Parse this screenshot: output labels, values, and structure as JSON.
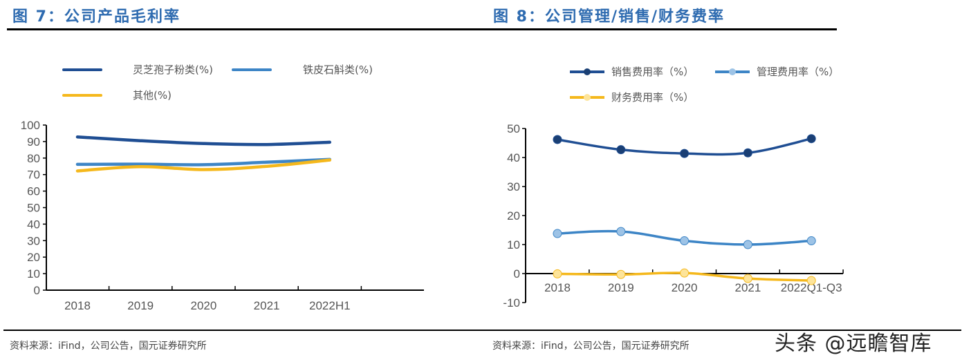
{
  "left": {
    "title": "图 7：公司产品毛利率",
    "source": "资料来源：iFind，公司公告，国元证券研究所"
  },
  "right": {
    "title": "图 8：公司管理/销售/财务费率",
    "source": "资料来源：iFind，公司公告，国元证券研究所"
  },
  "watermark": "头条 @远瞻智库",
  "chart_data": [
    {
      "type": "line",
      "title": "图 7：公司产品毛利率",
      "categories": [
        "2018",
        "2019",
        "2020",
        "2021",
        "2022H1"
      ],
      "ylim": [
        0,
        100
      ],
      "yticks": [
        0,
        10,
        20,
        30,
        40,
        50,
        60,
        70,
        80,
        90,
        100
      ],
      "grid": false,
      "legend": "top",
      "smooth": true,
      "markers": false,
      "series": [
        {
          "name": "灵芝孢子粉类(%)",
          "color": "#1f4e93",
          "values": [
            92.8,
            90.5,
            88.8,
            88.2,
            89.6
          ]
        },
        {
          "name": "铁皮石斛类(%)",
          "color": "#3d85c6",
          "values": [
            76.2,
            76.3,
            76.0,
            77.5,
            79.2
          ]
        },
        {
          "name": "其他(%)",
          "color": "#f5b81c",
          "values": [
            72.2,
            74.8,
            73.0,
            75.0,
            78.8
          ]
        }
      ]
    },
    {
      "type": "line",
      "title": "图 8：公司管理/销售/财务费率",
      "categories": [
        "2018",
        "2019",
        "2020",
        "2021",
        "2022Q1-Q3"
      ],
      "ylim": [
        -10,
        50
      ],
      "yticks": [
        -10,
        0,
        10,
        20,
        30,
        40,
        50
      ],
      "grid": false,
      "legend": "top",
      "smooth": true,
      "markers": true,
      "series": [
        {
          "name": "销售费用率（%）",
          "color": "#1f4e93",
          "marker_color": "#1a3f74",
          "values": [
            46.2,
            42.7,
            41.4,
            41.6,
            46.5
          ]
        },
        {
          "name": "管理费用率（%）",
          "color": "#3d85c6",
          "marker_color": "#9dc3e6",
          "values": [
            13.8,
            14.5,
            11.3,
            10.0,
            11.3
          ]
        },
        {
          "name": "财务费用率（%）",
          "color": "#f5b81c",
          "marker_color": "#fde49a",
          "values": [
            -0.1,
            -0.3,
            0.2,
            -1.7,
            -2.4
          ]
        }
      ]
    }
  ]
}
